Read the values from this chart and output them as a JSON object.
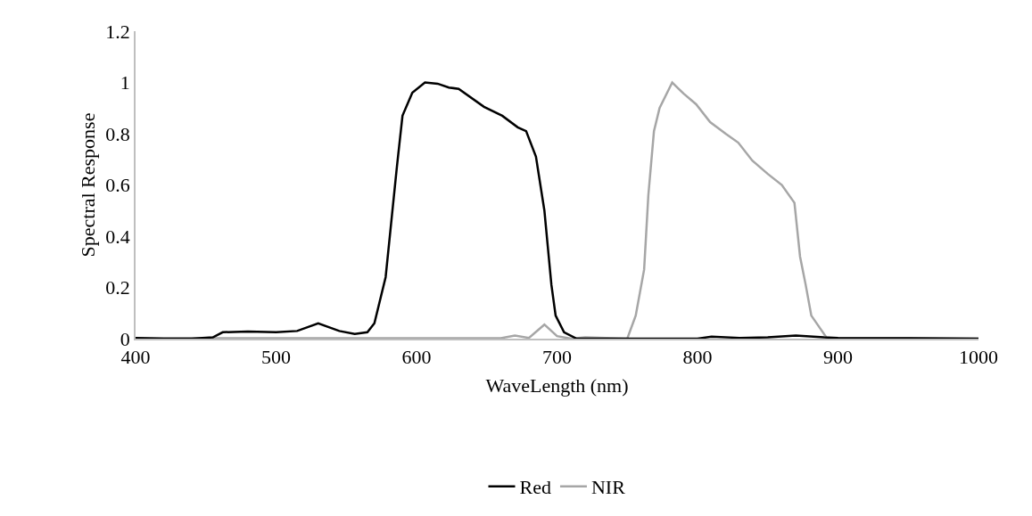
{
  "chart_data": {
    "type": "line",
    "xlabel": "WaveLength (nm)",
    "ylabel": "Spectral Response",
    "xlim": [
      400,
      1000
    ],
    "xticks": [
      400,
      500,
      600,
      700,
      800,
      900,
      1000
    ],
    "ylim": [
      0,
      1.2
    ],
    "yticks": [
      0,
      0.2,
      0.4,
      0.6,
      0.8,
      1,
      1.2
    ],
    "grid": false,
    "legend": "bottom",
    "marker": "none",
    "line_style": "solid",
    "series": [
      {
        "name": "Red",
        "color": "#000000",
        "x": [
          400,
          420,
          440,
          455,
          462,
          480,
          500,
          515,
          530,
          545,
          556,
          565,
          570,
          578,
          586,
          590,
          597,
          606,
          615,
          623,
          630,
          648,
          661,
          672,
          678,
          685,
          691,
          696,
          699,
          705,
          714,
          740,
          800,
          810,
          830,
          850,
          870,
          890,
          900,
          950,
          1000
        ],
        "values": [
          0.003,
          0,
          0,
          0.005,
          0.025,
          0.028,
          0.025,
          0.03,
          0.06,
          0.03,
          0.018,
          0.025,
          0.06,
          0.24,
          0.67,
          0.87,
          0.96,
          1,
          0.995,
          0.98,
          0.975,
          0.905,
          0.87,
          0.825,
          0.81,
          0.71,
          0.5,
          0.21,
          0.09,
          0.025,
          0,
          0,
          0,
          0.008,
          0.003,
          0.005,
          0.012,
          0.005,
          0.003,
          0.002,
          0
        ]
      },
      {
        "name": "NIR",
        "color": "#a6a6a6",
        "x": [
          400,
          450,
          500,
          550,
          600,
          640,
          660,
          670,
          680,
          691,
          700,
          710,
          720,
          740,
          750,
          756,
          762,
          765,
          769,
          773,
          782,
          790,
          799,
          809,
          820,
          829,
          839,
          850,
          860,
          869,
          873,
          877,
          881,
          892,
          900,
          950,
          1000
        ],
        "values": [
          0.002,
          0.002,
          0.002,
          0.002,
          0.002,
          0.002,
          0.002,
          0.012,
          0.003,
          0.055,
          0.01,
          0,
          0.005,
          0.002,
          0,
          0.09,
          0.27,
          0.56,
          0.81,
          0.9,
          1,
          0.957,
          0.915,
          0.845,
          0.8,
          0.765,
          0.695,
          0.643,
          0.6,
          0.53,
          0.32,
          0.21,
          0.09,
          0.003,
          0.002,
          0.002,
          0
        ]
      }
    ]
  }
}
